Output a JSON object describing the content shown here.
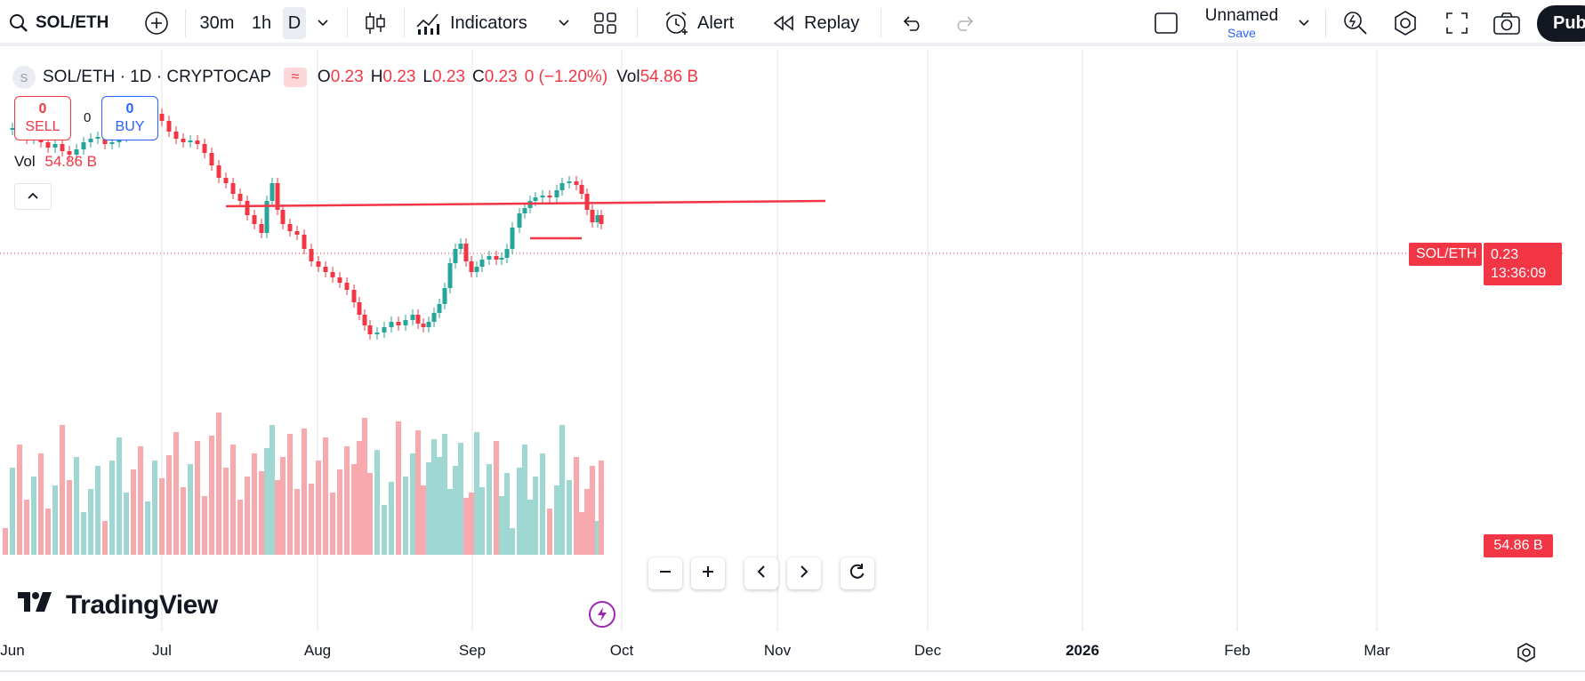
{
  "toolbar": {
    "symbol": "SOL/ETH",
    "intervals": [
      "30m",
      "1h",
      "D"
    ],
    "active_interval": "D",
    "indicators_label": "Indicators",
    "alert_label": "Alert",
    "replay_label": "Replay",
    "layout_name": "Unnamed",
    "save_label": "Save",
    "publish_label": "Pub"
  },
  "legend": {
    "title": "SOL/ETH · 1D · CRYPTOCAP",
    "symbol_initial": "S",
    "open_label": "O",
    "open": "0.23",
    "high_label": "H",
    "high": "0.23",
    "low_label": "L",
    "low": "0.23",
    "close_label": "C",
    "close": "0.23",
    "change": "0 (−1.20%)",
    "vol_label": "Vol",
    "vol": "54.86 B"
  },
  "trade": {
    "sell_count": "0",
    "sell_label": "SELL",
    "spread": "0",
    "buy_count": "0",
    "buy_label": "BUY"
  },
  "volume_legend": {
    "label": "Vol",
    "value": "54.86 B"
  },
  "price_scale": {
    "symbol_tag": "SOL/ETH",
    "last_price": "0.23",
    "countdown": "13:36:09",
    "volume_tag": "54.86 B"
  },
  "x_axis": [
    "Jun",
    "Jul",
    "Aug",
    "Sep",
    "Oct",
    "Nov",
    "Dec",
    "2026",
    "Feb",
    "Mar"
  ],
  "brand": "TradingView",
  "colors": {
    "up": "#26a69a",
    "down": "#f23645",
    "up_vol": "#9fd7d2",
    "down_vol": "#f7a9ae",
    "accent": "#2962ff"
  },
  "chart_data": {
    "type": "candlestick",
    "last_price": 0.23,
    "change_percent": -1.2,
    "volume_last": "54.86 B"
  }
}
